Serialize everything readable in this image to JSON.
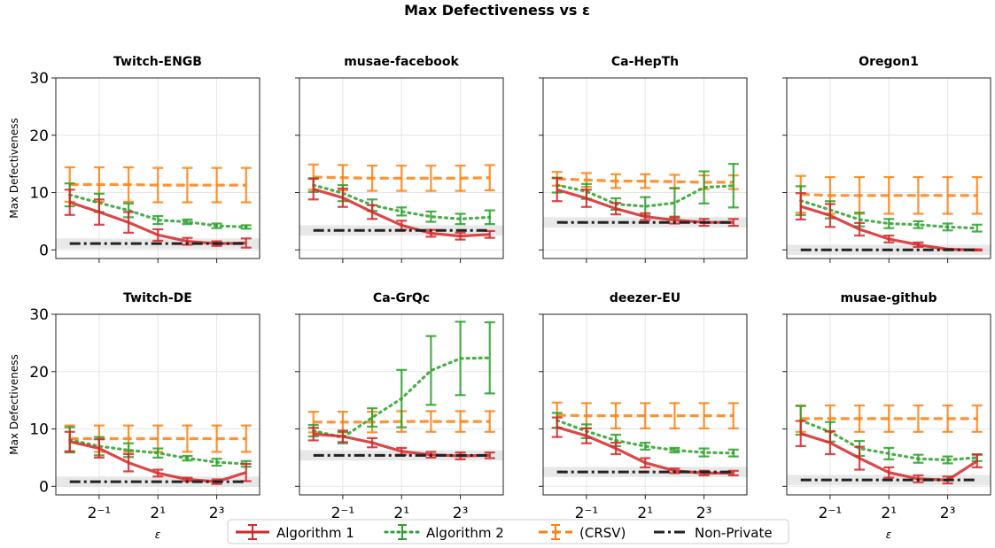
{
  "chart_data": {
    "type": "line",
    "title": "Max Defectiveness vs ε",
    "ylabel": "Max Defectiveness",
    "xlabel": "ε",
    "x_scale": "log2",
    "x_ticks": [
      "2⁻¹",
      "2¹",
      "2³"
    ],
    "y_ticks": [
      "0",
      "10",
      "20",
      "30"
    ],
    "ylim": [
      -1.5,
      30
    ],
    "x": [
      0.25,
      0.5,
      1,
      2,
      4,
      8,
      16
    ],
    "grid": true,
    "legend": {
      "position": "bottom-center",
      "entries": [
        "Algorithm 1",
        "Algorithm 2",
        "(CRSV)",
        "Non-Private"
      ]
    },
    "series_styles": [
      {
        "name": "Algorithm 1",
        "color": "#d62728",
        "dash": "solid"
      },
      {
        "name": "Algorithm 2",
        "color": "#2ca02c",
        "dash": "dotted"
      },
      {
        "name": "(CRSV)",
        "color": "#ff7f0e",
        "dash": "dashed"
      },
      {
        "name": "Non-Private",
        "color": "#222222",
        "dash": "dashdot"
      }
    ],
    "panels": [
      {
        "name": "Twitch-ENGB",
        "series": [
          {
            "name": "Algorithm 1",
            "values": [
              8.3,
              6.6,
              4.8,
              2.6,
              1.5,
              1.1,
              1.2
            ],
            "errors": [
              2.2,
              2.2,
              1.8,
              1.0,
              0.6,
              0.4,
              0.8
            ]
          },
          {
            "name": "Algorithm 2",
            "values": [
              9.6,
              8.2,
              6.9,
              5.2,
              4.9,
              4.2,
              4.0
            ],
            "errors": [
              2.0,
              1.6,
              1.2,
              0.7,
              0.4,
              0.4,
              0.3
            ]
          },
          {
            "name": "(CRSV)",
            "values": [
              11.4,
              11.4,
              11.4,
              11.3,
              11.3,
              11.3,
              11.3
            ],
            "errors": [
              3.0,
              3.0,
              3.0,
              3.0,
              3.0,
              3.0,
              3.0
            ]
          }
        ],
        "nonprivate": 1.1
      },
      {
        "name": "musae-facebook",
        "series": [
          {
            "name": "Algorithm 1",
            "values": [
              10.6,
              9.1,
              6.6,
              4.3,
              2.9,
              2.4,
              2.7
            ],
            "errors": [
              1.8,
              1.6,
              1.2,
              0.8,
              0.6,
              0.6,
              0.6
            ]
          },
          {
            "name": "Algorithm 2",
            "values": [
              11.3,
              9.9,
              7.8,
              6.7,
              5.8,
              5.4,
              5.7
            ],
            "errors": [
              1.2,
              1.4,
              1.0,
              0.7,
              0.9,
              0.9,
              1.2
            ]
          },
          {
            "name": "(CRSV)",
            "values": [
              12.7,
              12.6,
              12.5,
              12.5,
              12.5,
              12.5,
              12.6
            ],
            "errors": [
              2.2,
              2.2,
              2.2,
              2.2,
              2.2,
              2.2,
              2.2
            ]
          }
        ],
        "nonprivate": 3.4
      },
      {
        "name": "Ca-HepTh",
        "series": [
          {
            "name": "Algorithm 1",
            "values": [
              10.5,
              9.0,
              7.2,
              5.8,
              5.2,
              4.8,
              4.8
            ],
            "errors": [
              2.0,
              1.5,
              1.0,
              0.6,
              0.6,
              0.6,
              0.6
            ]
          },
          {
            "name": "Algorithm 2",
            "values": [
              11.3,
              10.2,
              8.0,
              7.6,
              8.2,
              10.9,
              11.2
            ],
            "errors": [
              1.3,
              1.3,
              1.0,
              1.6,
              2.6,
              2.8,
              3.8
            ]
          },
          {
            "name": "(CRSV)",
            "values": [
              12.4,
              12.2,
              12.0,
              12.0,
              11.9,
              11.8,
              11.8
            ],
            "errors": [
              1.2,
              1.2,
              1.2,
              1.2,
              1.2,
              1.2,
              1.2
            ]
          }
        ],
        "nonprivate": 4.8
      },
      {
        "name": "Oregon1",
        "series": [
          {
            "name": "Algorithm 1",
            "values": [
              7.6,
              6.0,
              3.6,
              1.9,
              0.9,
              0.1,
              0.0
            ],
            "errors": [
              2.3,
              2.0,
              1.1,
              0.6,
              0.4,
              0.1,
              0.1
            ]
          },
          {
            "name": "Algorithm 2",
            "values": [
              8.6,
              7.0,
              5.3,
              4.6,
              4.4,
              4.0,
              3.8
            ],
            "errors": [
              2.5,
              1.5,
              1.2,
              0.8,
              0.6,
              0.6,
              0.6
            ]
          },
          {
            "name": "(CRSV)",
            "values": [
              9.7,
              9.5,
              9.5,
              9.5,
              9.5,
              9.5,
              9.5
            ],
            "errors": [
              3.2,
              3.2,
              3.2,
              3.2,
              3.2,
              3.2,
              3.2
            ]
          }
        ],
        "nonprivate": 0.0
      },
      {
        "name": "Twitch-DE",
        "series": [
          {
            "name": "Algorithm 1",
            "values": [
              7.8,
              6.6,
              4.1,
              2.3,
              1.2,
              0.8,
              2.4
            ],
            "errors": [
              1.7,
              1.6,
              1.5,
              0.6,
              0.3,
              0.4,
              1.5
            ]
          },
          {
            "name": "Algorithm 2",
            "values": [
              8.1,
              7.0,
              6.3,
              5.8,
              4.9,
              4.2,
              3.9
            ],
            "errors": [
              2.2,
              1.6,
              1.2,
              0.8,
              0.4,
              0.6,
              0.5
            ]
          },
          {
            "name": "(CRSV)",
            "values": [
              8.3,
              8.3,
              8.3,
              8.3,
              8.3,
              8.3,
              8.3
            ],
            "errors": [
              2.3,
              2.3,
              2.3,
              2.3,
              2.3,
              2.3,
              2.3
            ]
          }
        ],
        "nonprivate": 0.8
      },
      {
        "name": "Ca-GrQc",
        "series": [
          {
            "name": "Algorithm 1",
            "values": [
              9.1,
              8.7,
              7.6,
              6.1,
              5.5,
              5.3,
              5.4
            ],
            "errors": [
              1.1,
              1.0,
              0.8,
              0.6,
              0.5,
              0.6,
              0.5
            ]
          },
          {
            "name": "Algorithm 2",
            "values": [
              9.7,
              8.5,
              12.0,
              15.3,
              20.2,
              22.3,
              22.4
            ],
            "errors": [
              1.0,
              1.0,
              1.6,
              5.0,
              6.0,
              6.4,
              6.2
            ]
          },
          {
            "name": "(CRSV)",
            "values": [
              11.2,
              11.2,
              11.2,
              11.3,
              11.3,
              11.3,
              11.3
            ],
            "errors": [
              1.8,
              1.8,
              1.8,
              1.8,
              1.8,
              1.8,
              1.8
            ]
          }
        ],
        "nonprivate": 5.4
      },
      {
        "name": "deezer-EU",
        "series": [
          {
            "name": "Algorithm 1",
            "values": [
              10.3,
              8.8,
              6.6,
              4.1,
              2.7,
              2.3,
              2.3
            ],
            "errors": [
              1.7,
              1.3,
              1.0,
              0.8,
              0.4,
              0.4,
              0.4
            ]
          },
          {
            "name": "Algorithm 2",
            "values": [
              11.5,
              9.6,
              8.0,
              7.0,
              6.3,
              5.9,
              5.8
            ],
            "errors": [
              1.3,
              1.2,
              1.0,
              0.6,
              0.4,
              0.7,
              0.6
            ]
          },
          {
            "name": "(CRSV)",
            "values": [
              12.4,
              12.3,
              12.3,
              12.3,
              12.3,
              12.3,
              12.3
            ],
            "errors": [
              2.2,
              2.2,
              2.2,
              2.2,
              2.2,
              2.2,
              2.2
            ]
          }
        ],
        "nonprivate": 2.5
      },
      {
        "name": "musae-github",
        "series": [
          {
            "name": "Algorithm 1",
            "values": [
              9.2,
              7.6,
              4.9,
              2.4,
              1.3,
              1.1,
              4.4
            ],
            "errors": [
              2.2,
              2.0,
              2.0,
              0.9,
              0.6,
              0.6,
              1.1
            ]
          },
          {
            "name": "Algorithm 2",
            "values": [
              11.5,
              9.5,
              6.6,
              5.7,
              4.8,
              4.6,
              5.0
            ],
            "errors": [
              2.5,
              1.7,
              1.3,
              1.0,
              0.7,
              0.6,
              0.6
            ]
          },
          {
            "name": "(CRSV)",
            "values": [
              11.8,
              11.8,
              11.8,
              11.8,
              11.8,
              11.8,
              11.8
            ],
            "errors": [
              2.3,
              2.3,
              2.3,
              2.3,
              2.3,
              2.3,
              2.3
            ]
          }
        ],
        "nonprivate": 1.1
      }
    ]
  }
}
